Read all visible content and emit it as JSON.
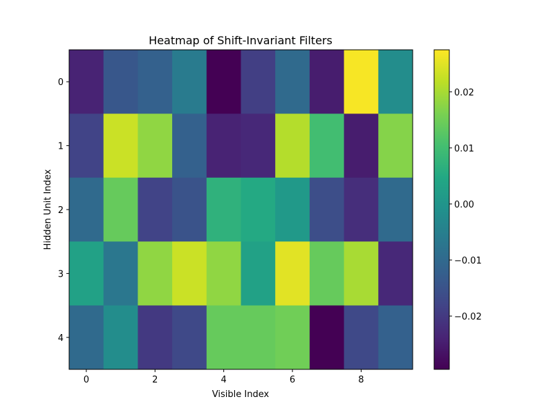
{
  "chart_data": {
    "type": "heatmap",
    "title": "Heatmap of Shift-Invariant Filters",
    "xlabel": "Visible Index",
    "ylabel": "Hidden Unit Index",
    "colormap": "viridis",
    "x_categories": [
      0,
      1,
      2,
      3,
      4,
      5,
      6,
      7,
      8,
      9
    ],
    "y_categories": [
      0,
      1,
      2,
      3,
      4
    ],
    "x_tick_labels": [
      "0",
      "2",
      "4",
      "6",
      "8"
    ],
    "x_tick_values": [
      0,
      2,
      4,
      6,
      8
    ],
    "y_tick_labels": [
      "0",
      "1",
      "2",
      "3",
      "4"
    ],
    "y_tick_values": [
      0,
      1,
      2,
      3,
      4
    ],
    "values": [
      [
        -0.024,
        -0.014,
        -0.012,
        -0.006,
        -0.03,
        -0.019,
        -0.01,
        -0.025,
        0.027,
        -0.002
      ],
      [
        -0.018,
        0.023,
        0.018,
        -0.012,
        -0.024,
        -0.023,
        0.021,
        0.01,
        -0.025,
        0.017
      ],
      [
        -0.01,
        0.014,
        -0.018,
        -0.015,
        0.007,
        0.005,
        0.001,
        -0.016,
        -0.022,
        -0.01
      ],
      [
        0.003,
        -0.007,
        0.018,
        0.023,
        0.018,
        0.003,
        0.025,
        0.014,
        0.02,
        -0.023
      ],
      [
        -0.01,
        -0.002,
        -0.02,
        -0.017,
        0.014,
        0.014,
        0.015,
        -0.03,
        -0.017,
        -0.012
      ]
    ],
    "vmin": -0.0295,
    "vmax": 0.0275,
    "colorbar_ticks": [
      -0.02,
      -0.01,
      0.0,
      0.01,
      0.02
    ],
    "colorbar_tick_labels": [
      "−0.02",
      "−0.01",
      "0.00",
      "0.01",
      "0.02"
    ]
  }
}
